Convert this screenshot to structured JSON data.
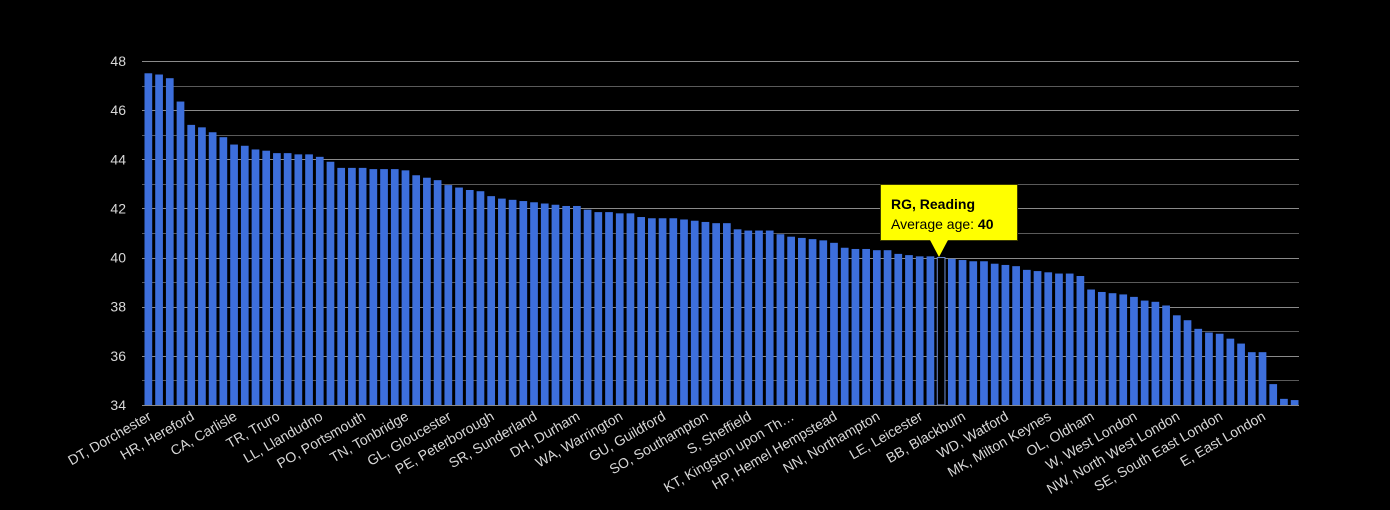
{
  "chart_data": {
    "type": "bar",
    "title": "",
    "xlabel": "",
    "ylabel": "",
    "ylim": [
      34,
      48
    ],
    "yticks": [
      34,
      36,
      38,
      40,
      42,
      44,
      46,
      48
    ],
    "bar_color": "#3d6fdc",
    "highlight_color": "#000000",
    "background": "#000000",
    "grid": true,
    "visible_xtick_labels": [
      "DT, Dorchester",
      "HR, Hereford",
      "CA, Carlisle",
      "TR, Truro",
      "LL, Llandudno",
      "PO, Portsmouth",
      "TN, Tonbridge",
      "GL, Gloucester",
      "PE, Peterborough",
      "SR, Sunderland",
      "DH, Durham",
      "WA, Warrington",
      "GU, Guildford",
      "SO, Southampton",
      "S, Sheffield",
      "KT, Kingston upon Th…",
      "HP, Hemel Hempstead",
      "NN, Northampton",
      "LE, Leicester",
      "BB, Blackburn",
      "WD, Watford",
      "MK, Milton Keynes",
      "OL, Oldham",
      "W, West London",
      "NW, North West London",
      "SE, South East London",
      "E, East London"
    ],
    "label_every": 4,
    "values": [
      47.5,
      47.45,
      47.3,
      46.35,
      45.4,
      45.3,
      45.1,
      44.9,
      44.6,
      44.55,
      44.4,
      44.35,
      44.25,
      44.25,
      44.2,
      44.2,
      44.1,
      43.9,
      43.65,
      43.65,
      43.65,
      43.6,
      43.6,
      43.6,
      43.55,
      43.35,
      43.25,
      43.15,
      42.95,
      42.85,
      42.75,
      42.7,
      42.5,
      42.4,
      42.35,
      42.3,
      42.25,
      42.2,
      42.15,
      42.1,
      42.1,
      41.95,
      41.85,
      41.85,
      41.8,
      41.8,
      41.65,
      41.6,
      41.6,
      41.6,
      41.55,
      41.5,
      41.45,
      41.4,
      41.4,
      41.15,
      41.1,
      41.1,
      41.1,
      40.95,
      40.85,
      40.8,
      40.75,
      40.7,
      40.6,
      40.4,
      40.35,
      40.35,
      40.3,
      40.3,
      40.15,
      40.1,
      40.05,
      40.05,
      40.0,
      39.95,
      39.9,
      39.85,
      39.85,
      39.75,
      39.7,
      39.65,
      39.5,
      39.45,
      39.4,
      39.35,
      39.35,
      39.25,
      38.7,
      38.6,
      38.55,
      38.5,
      38.4,
      38.25,
      38.2,
      38.05,
      37.65,
      37.45,
      37.1,
      36.95,
      36.9,
      36.7,
      36.5,
      36.15,
      36.15,
      34.85,
      34.25,
      34.2
    ],
    "highlight_index": 74
  },
  "tooltip": {
    "title": "RG, Reading",
    "label": "Average age: ",
    "value": "40"
  }
}
